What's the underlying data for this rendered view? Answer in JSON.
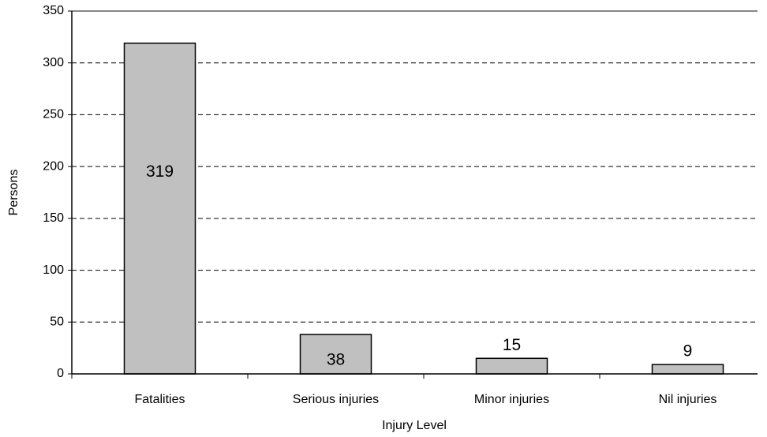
{
  "chart_data": {
    "type": "bar",
    "x_label": "Injury Level",
    "y_label": "Persons",
    "categories": [
      "Fatalities",
      "Serious injuries",
      "Minor injuries",
      "Nil injuries"
    ],
    "values": [
      319,
      38,
      15,
      9
    ],
    "color": "#c0c0c0",
    "ylim": [
      0,
      350
    ],
    "yticks": [
      0,
      50,
      100,
      150,
      200,
      250,
      300,
      350
    ],
    "grid": true
  }
}
